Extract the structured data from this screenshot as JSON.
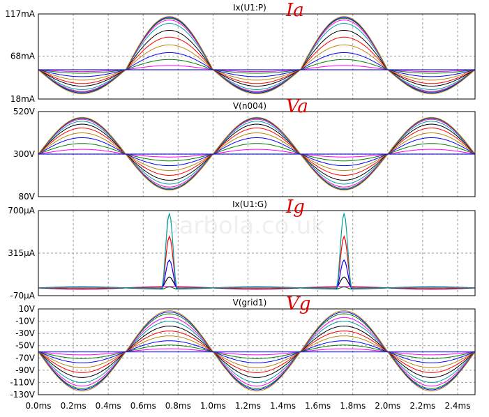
{
  "annotations": {
    "ia": "Ia",
    "va": "Va",
    "ig": "Ig",
    "vg": "Vg"
  },
  "watermark": "barbola.co.uk",
  "colors": [
    "#ff00ff",
    "#008000",
    "#0000ff",
    "#b8860b",
    "#ff0000",
    "#000000",
    "#00a0a0"
  ],
  "x_axis": {
    "ticks": [
      0,
      0.2,
      0.4,
      0.6,
      0.8,
      1.0,
      1.2,
      1.4,
      1.6,
      1.8,
      2.0,
      2.2,
      2.4
    ],
    "labels": [
      "0.0ms",
      "0.2ms",
      "0.4ms",
      "0.6ms",
      "0.8ms",
      "1.0ms",
      "1.2ms",
      "1.4ms",
      "1.6ms",
      "1.8ms",
      "2.0ms",
      "2.2ms",
      "2.4ms"
    ],
    "xlim": [
      0,
      2.5
    ]
  },
  "chart_data": [
    {
      "type": "line",
      "title": "Ix(U1:P)",
      "ylim": [
        18,
        117
      ],
      "yticks": [
        117,
        68,
        18
      ],
      "ylabels": [
        "117mA",
        "68mA",
        "18mA"
      ],
      "series_note_x_unit": "ms",
      "x": [
        0,
        0.125,
        0.25,
        0.375,
        0.5,
        0.625,
        0.75,
        0.875,
        1.0,
        1.125,
        1.25,
        1.375,
        1.5,
        1.625,
        1.75,
        1.875,
        2.0,
        2.125,
        2.25,
        2.375,
        2.5
      ],
      "baseline": 52,
      "peak_amplitudes": [
        5,
        12,
        20,
        29,
        38,
        46,
        54,
        58,
        60,
        61,
        62
      ],
      "trough_amplitudes": [
        2,
        4,
        8,
        12,
        16,
        19,
        23,
        25,
        26,
        27,
        28
      ]
    },
    {
      "type": "line",
      "title": "V(n004)",
      "ylim": [
        80,
        520
      ],
      "yticks": [
        520,
        300,
        80
      ],
      "ylabels": [
        "520V",
        "300V",
        "80V"
      ],
      "baseline": 300,
      "peak_amplitudes": [
        25,
        55,
        85,
        110,
        135,
        155,
        170,
        180,
        185,
        188,
        190
      ],
      "trough_amplitudes": [
        15,
        35,
        60,
        85,
        110,
        135,
        155,
        170,
        178,
        183,
        186
      ]
    },
    {
      "type": "line",
      "title": "Ix(U1:G)",
      "ylim": [
        -70,
        700
      ],
      "yticks": [
        700,
        315,
        -70
      ],
      "ylabels": [
        "700µA",
        "315µA",
        "-70µA"
      ],
      "baseline": 0,
      "spike_centers": [
        0.75,
        1.75
      ],
      "spike_heights": [
        680,
        460,
        260,
        90,
        20,
        0
      ],
      "ripple_amplitude": 12
    },
    {
      "type": "line",
      "title": "V(grid1)",
      "ylim": [
        -130,
        10
      ],
      "yticks": [
        10,
        -10,
        -30,
        -50,
        -70,
        -90,
        -110,
        -130
      ],
      "ylabels": [
        "10V",
        "-10V",
        "-30V",
        "-50V",
        "-70V",
        "-90V",
        "-110V",
        "-130V"
      ],
      "baseline": -60,
      "peak_amplitudes": [
        5,
        11,
        18,
        26,
        34,
        42,
        50,
        56,
        62,
        65,
        67
      ],
      "trough_amplitudes": [
        5,
        11,
        18,
        26,
        34,
        42,
        50,
        56,
        60,
        62,
        64
      ]
    }
  ]
}
